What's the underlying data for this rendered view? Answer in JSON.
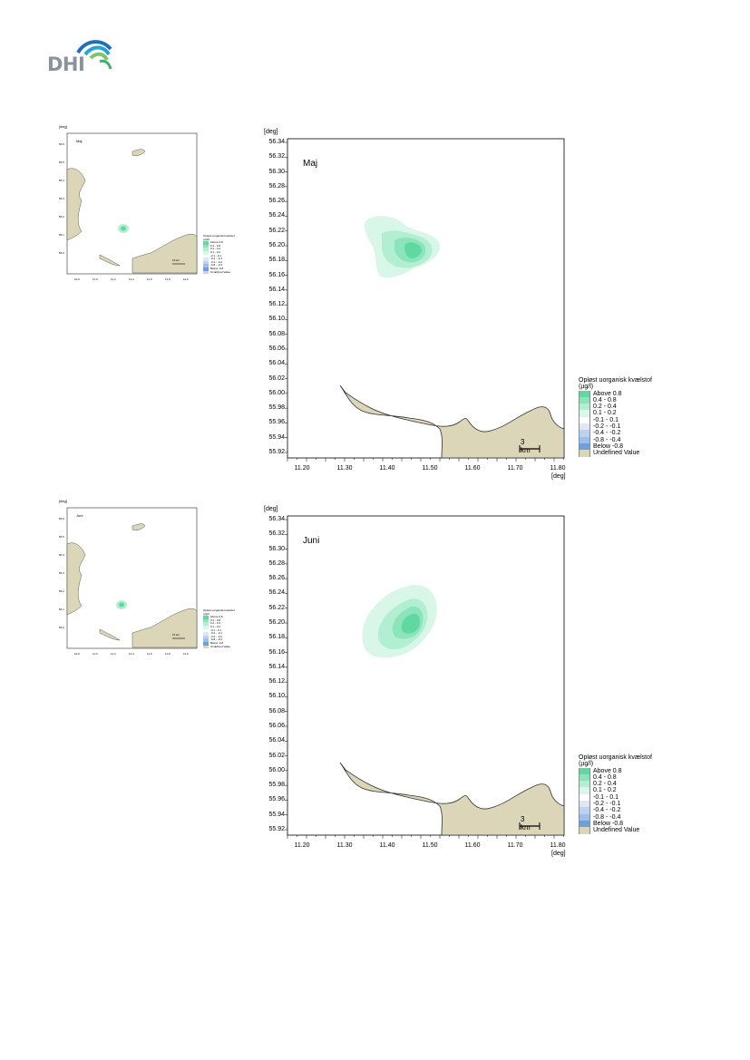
{
  "logo": {
    "text": "DHI",
    "name": "dhi-logo"
  },
  "axis": {
    "unit_y": "[deg]",
    "unit_x": "[deg]",
    "y_ticks": [
      "56.34",
      "56.32",
      "56.30",
      "56.28",
      "56.26",
      "56.24",
      "56.22",
      "56.20",
      "56.18",
      "56.16",
      "56.14",
      "56.12",
      "56.10",
      "56.08",
      "56.06",
      "56.04",
      "56.02",
      "56.00",
      "55.98",
      "55.96",
      "55.94",
      "55.92"
    ],
    "x_ticks": [
      "11.20",
      "11.30",
      "11.40",
      "11.50",
      "11.60",
      "11.70",
      "11.80"
    ]
  },
  "legend": {
    "title_line1": "Opløst uorganisk kvælstof",
    "title_line2": "(µg/l)",
    "items": [
      {
        "label": "Above  0.8",
        "color": "#5fd8a2"
      },
      {
        "label": " 0.4 -  0.8",
        "color": "#8ce4bb"
      },
      {
        "label": " 0.2 -  0.4",
        "color": "#b2eed2"
      },
      {
        "label": " 0.1 -  0.2",
        "color": "#d8f7e8"
      },
      {
        "label": "-0.1 -  0.1",
        "color": "#ffffff"
      },
      {
        "label": "-0.2 - -0.1",
        "color": "#dde8f6"
      },
      {
        "label": "-0.4 - -0.2",
        "color": "#bcd3f0"
      },
      {
        "label": "-0.8 - -0.4",
        "color": "#9dbfea"
      },
      {
        "label": "Below -0.8",
        "color": "#6aa0df"
      },
      {
        "label": "Undefined Value",
        "color": "#dcd6b8"
      }
    ]
  },
  "colors": {
    "land": "#dcd6b8",
    "coast": "#333333"
  },
  "panels": [
    {
      "month": "Maj",
      "scale": "3 km"
    },
    {
      "month": "Juni",
      "scale": "3 km"
    }
  ],
  "thumbnails": [
    {
      "month": "Maj",
      "y_ticks": [
        "56.6",
        "56.5",
        "56.4",
        "56.3",
        "56.2",
        "56.1",
        "56.0"
      ],
      "x_ticks": [
        "10.9",
        "11.0",
        "11.2",
        "11.4",
        "11.6",
        "11.8",
        "12.0"
      ],
      "scale": "15 km"
    },
    {
      "month": "Juni",
      "y_ticks": [
        "56.6",
        "56.5",
        "56.4",
        "56.3",
        "56.2",
        "56.1",
        "56.0"
      ],
      "x_ticks": [
        "10.9",
        "11.0",
        "11.2",
        "11.4",
        "11.6",
        "11.8",
        "12.0"
      ],
      "scale": "15 km"
    }
  ]
}
